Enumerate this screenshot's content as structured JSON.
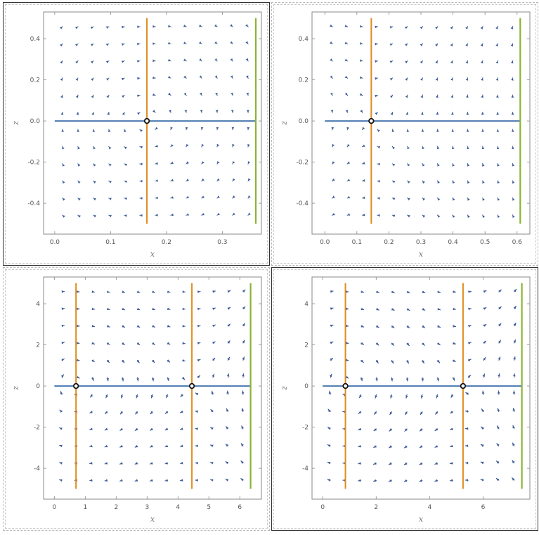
{
  "colors": {
    "stream": "#3f5d99",
    "horizontal_line": "#4a78b0",
    "vertical_line": "#e08c1c",
    "boundary_line": "#8bb536",
    "frame": "#888888",
    "tick_text": "#555555"
  },
  "chart_data": [
    {
      "type": "stream",
      "xlabel": "x",
      "ylabel": "z",
      "xlim": [
        -0.02,
        0.37
      ],
      "ylim": [
        -0.55,
        0.53
      ],
      "xticks": [
        0.0,
        0.1,
        0.2,
        0.3
      ],
      "xtick_labels": [
        "0.0",
        "0.1",
        "0.2",
        "0.3"
      ],
      "yticks": [
        -0.4,
        -0.2,
        0.0,
        0.2,
        0.4
      ],
      "ytick_labels": [
        "-0.4",
        "-0.2",
        "0.0",
        "0.2",
        "0.4"
      ],
      "horizontal_line": {
        "y": 0,
        "x_from": 0,
        "x_to": 0.36
      },
      "vertical_lines": [
        {
          "x": 0.165,
          "y_from": -0.5,
          "y_to": 0.5
        }
      ],
      "boundary_line": {
        "x": 0.36,
        "y_from": -0.5,
        "y_to": 0.5
      },
      "equilibria": [
        {
          "x": 0.165,
          "z": 0.0,
          "kind": "center"
        }
      ]
    },
    {
      "type": "stream",
      "xlabel": "x",
      "ylabel": "z",
      "xlim": [
        -0.04,
        0.64
      ],
      "ylim": [
        -0.55,
        0.53
      ],
      "xticks": [
        0.0,
        0.1,
        0.2,
        0.3,
        0.4,
        0.5,
        0.6
      ],
      "xtick_labels": [
        "0.0",
        "0.1",
        "0.2",
        "0.3",
        "0.4",
        "0.5",
        "0.6"
      ],
      "yticks": [
        -0.4,
        -0.2,
        0.0,
        0.2,
        0.4
      ],
      "ytick_labels": [
        "-0.4",
        "-0.2",
        "0.0",
        "0.2",
        "0.4"
      ],
      "horizontal_line": {
        "y": 0,
        "x_from": 0,
        "x_to": 0.61
      },
      "vertical_lines": [
        {
          "x": 0.145,
          "y_from": -0.5,
          "y_to": 0.5
        }
      ],
      "boundary_line": {
        "x": 0.61,
        "y_from": -0.5,
        "y_to": 0.5
      },
      "equilibria": [
        {
          "x": 0.145,
          "z": 0.0,
          "kind": "saddle"
        }
      ]
    },
    {
      "type": "stream",
      "xlabel": "x",
      "ylabel": "z",
      "xlim": [
        -0.35,
        6.7
      ],
      "ylim": [
        -5.5,
        5.3
      ],
      "xticks": [
        0,
        1,
        2,
        3,
        4,
        5,
        6
      ],
      "xtick_labels": [
        "0",
        "1",
        "2",
        "3",
        "4",
        "5",
        "6"
      ],
      "yticks": [
        -4,
        -2,
        0,
        2,
        4
      ],
      "ytick_labels": [
        "-4",
        "-2",
        "0",
        "2",
        "4"
      ],
      "horizontal_line": {
        "y": 0,
        "x_from": 0,
        "x_to": 6.35
      },
      "vertical_lines": [
        {
          "x": 0.7,
          "y_from": -5,
          "y_to": 5
        },
        {
          "x": 4.45,
          "y_from": -5,
          "y_to": 5
        }
      ],
      "boundary_line": {
        "x": 6.35,
        "y_from": -5,
        "y_to": 5
      },
      "equilibria": [
        {
          "x": 0.7,
          "z": 0.0,
          "kind": "center"
        },
        {
          "x": 4.45,
          "z": 0.0,
          "kind": "saddle"
        }
      ]
    },
    {
      "type": "stream",
      "xlabel": "x",
      "ylabel": "z",
      "xlim": [
        -0.4,
        7.75
      ],
      "ylim": [
        -5.5,
        5.3
      ],
      "xticks": [
        0,
        2,
        4,
        6
      ],
      "xtick_labels": [
        "0",
        "2",
        "4",
        "6"
      ],
      "yticks": [
        -4,
        -2,
        0,
        2,
        4
      ],
      "ytick_labels": [
        "-4",
        "-2",
        "0",
        "2",
        "4"
      ],
      "horizontal_line": {
        "y": 0,
        "x_from": 0,
        "x_to": 7.45
      },
      "vertical_lines": [
        {
          "x": 0.85,
          "y_from": -5,
          "y_to": 5
        },
        {
          "x": 5.25,
          "y_from": -5,
          "y_to": 5
        }
      ],
      "boundary_line": {
        "x": 7.45,
        "y_from": -5,
        "y_to": 5
      },
      "equilibria": [
        {
          "x": 0.85,
          "z": 0.0,
          "kind": "center"
        },
        {
          "x": 5.25,
          "z": 0.0,
          "kind": "saddle"
        }
      ]
    }
  ]
}
